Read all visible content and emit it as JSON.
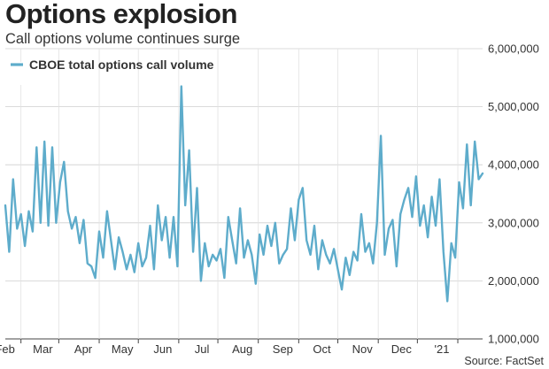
{
  "chart_data": {
    "type": "line",
    "title": "Options explosion",
    "subtitle": "Call options volume continues surge",
    "source": "Source: FactSet",
    "ylim": [
      1000000,
      6000000
    ],
    "y_ticks": [
      "1,000,000",
      "2,000,000",
      "3,000,000",
      "4,000,000",
      "5,000,000",
      "6,000,000"
    ],
    "y_tick_values": [
      1000000,
      2000000,
      3000000,
      4000000,
      5000000,
      6000000
    ],
    "x_ticks": [
      "Feb",
      "Mar",
      "Apr",
      "May",
      "Jun",
      "Jul",
      "Aug",
      "Sep",
      "Oct",
      "Nov",
      "Dec",
      "'21"
    ],
    "x_tick_dates": [
      "2020-02-01",
      "2020-03-01",
      "2020-04-01",
      "2020-05-01",
      "2020-06-01",
      "2020-07-01",
      "2020-08-01",
      "2020-09-01",
      "2020-10-01",
      "2020-11-01",
      "2020-12-01",
      "2021-01-01"
    ],
    "x_start": "2020-01-20",
    "x_end": "2021-01-20",
    "grid": true,
    "legend_position": "top-left",
    "color": "#5eaccb",
    "series": [
      {
        "name": "CBOE total options call volume",
        "x": [
          "2020-01-20",
          "2020-01-23",
          "2020-01-26",
          "2020-01-29",
          "2020-02-01",
          "2020-02-04",
          "2020-02-07",
          "2020-02-10",
          "2020-02-13",
          "2020-02-16",
          "2020-02-19",
          "2020-02-22",
          "2020-02-25",
          "2020-02-28",
          "2020-03-02",
          "2020-03-05",
          "2020-03-08",
          "2020-03-11",
          "2020-03-14",
          "2020-03-17",
          "2020-03-20",
          "2020-03-23",
          "2020-03-26",
          "2020-03-29",
          "2020-04-01",
          "2020-04-04",
          "2020-04-07",
          "2020-04-10",
          "2020-04-13",
          "2020-04-16",
          "2020-04-19",
          "2020-04-22",
          "2020-04-25",
          "2020-04-28",
          "2020-05-01",
          "2020-05-04",
          "2020-05-07",
          "2020-05-10",
          "2020-05-13",
          "2020-05-16",
          "2020-05-19",
          "2020-05-22",
          "2020-05-25",
          "2020-05-28",
          "2020-05-31",
          "2020-06-03",
          "2020-06-06",
          "2020-06-09",
          "2020-06-12",
          "2020-06-15",
          "2020-06-18",
          "2020-06-21",
          "2020-06-24",
          "2020-06-27",
          "2020-06-30",
          "2020-07-03",
          "2020-07-06",
          "2020-07-09",
          "2020-07-12",
          "2020-07-15",
          "2020-07-18",
          "2020-07-21",
          "2020-07-24",
          "2020-07-27",
          "2020-07-30",
          "2020-08-02",
          "2020-08-05",
          "2020-08-08",
          "2020-08-11",
          "2020-08-14",
          "2020-08-17",
          "2020-08-20",
          "2020-08-23",
          "2020-08-26",
          "2020-08-29",
          "2020-09-01",
          "2020-09-04",
          "2020-09-07",
          "2020-09-10",
          "2020-09-13",
          "2020-09-16",
          "2020-09-19",
          "2020-09-22",
          "2020-09-25",
          "2020-09-28",
          "2020-10-01",
          "2020-10-04",
          "2020-10-07",
          "2020-10-10",
          "2020-10-13",
          "2020-10-16",
          "2020-10-19",
          "2020-10-22",
          "2020-10-25",
          "2020-10-28",
          "2020-10-31",
          "2020-11-03",
          "2020-11-06",
          "2020-11-09",
          "2020-11-12",
          "2020-11-15",
          "2020-11-18",
          "2020-11-21",
          "2020-11-24",
          "2020-11-27",
          "2020-11-30",
          "2020-12-03",
          "2020-12-06",
          "2020-12-09",
          "2020-12-12",
          "2020-12-15",
          "2020-12-18",
          "2020-12-21",
          "2020-12-24",
          "2020-12-27",
          "2020-12-30",
          "2021-01-02",
          "2021-01-05",
          "2021-01-08",
          "2021-01-11",
          "2021-01-14",
          "2021-01-17",
          "2021-01-20"
        ],
        "values": [
          3300000,
          2500000,
          3750000,
          2900000,
          3150000,
          2600000,
          3200000,
          2850000,
          4300000,
          3000000,
          4400000,
          2950000,
          4300000,
          3000000,
          3700000,
          4050000,
          3200000,
          2900000,
          3100000,
          2650000,
          3050000,
          2300000,
          2250000,
          2050000,
          2850000,
          2400000,
          3200000,
          2700000,
          2200000,
          2750000,
          2500000,
          2200000,
          2450000,
          2150000,
          2650000,
          2250000,
          2400000,
          2950000,
          2200000,
          3300000,
          2700000,
          3100000,
          2400000,
          3100000,
          2250000,
          5350000,
          3300000,
          4250000,
          2500000,
          3600000,
          2000000,
          2650000,
          2250000,
          2450000,
          2350000,
          2550000,
          2050000,
          3100000,
          2700000,
          2300000,
          3250000,
          2400000,
          2700000,
          2450000,
          1950000,
          2800000,
          2450000,
          2950000,
          2600000,
          3000000,
          2300000,
          2450000,
          2550000,
          3250000,
          2700000,
          3400000,
          3600000,
          2700000,
          2450000,
          2950000,
          2200000,
          2700000,
          2450000,
          2300000,
          2550000,
          2200000,
          1850000,
          2400000,
          2100000,
          2500000,
          2350000,
          3150000,
          2500000,
          2650000,
          2300000,
          3000000,
          4500000,
          2450000,
          2900000,
          3050000,
          2250000,
          3150000,
          3400000,
          3600000,
          3100000,
          3800000,
          2950000,
          3300000,
          2750000,
          3450000,
          2950000,
          3750000,
          2500000,
          1650000,
          2650000,
          2400000,
          3700000,
          3250000,
          4350000,
          3300000,
          4400000,
          3750000,
          3850000
        ]
      }
    ]
  }
}
